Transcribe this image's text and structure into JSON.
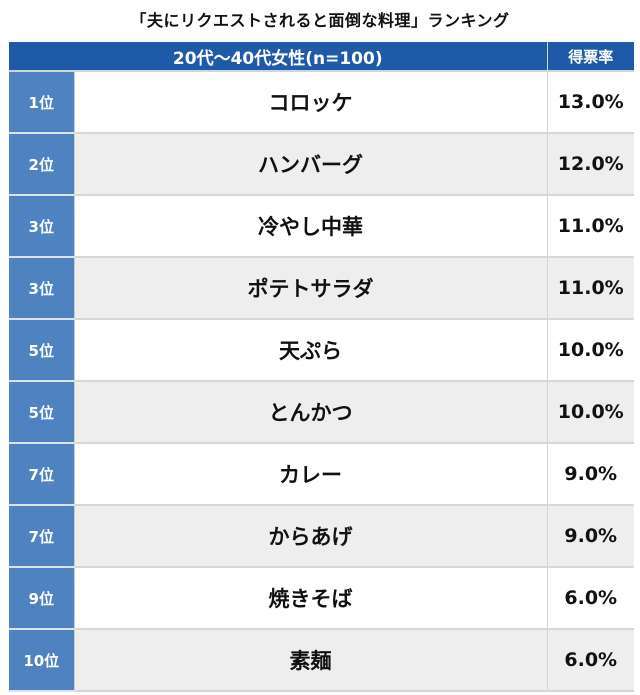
{
  "chart_data": {
    "type": "table",
    "title": "「夫にリクエストされると面倒な料理」ランキング",
    "header": {
      "group_label": "20代〜40代女性(n=100)",
      "share_label": "得票率"
    },
    "rows": [
      {
        "rank": "1位",
        "food": "コロッケ",
        "share": "13.0%",
        "value": 13.0
      },
      {
        "rank": "2位",
        "food": "ハンバーグ",
        "share": "12.0%",
        "value": 12.0
      },
      {
        "rank": "3位",
        "food": "冷やし中華",
        "share": "11.0%",
        "value": 11.0
      },
      {
        "rank": "3位",
        "food": "ポテトサラダ",
        "share": "11.0%",
        "value": 11.0
      },
      {
        "rank": "5位",
        "food": "天ぷら",
        "share": "10.0%",
        "value": 10.0
      },
      {
        "rank": "5位",
        "food": "とんかつ",
        "share": "10.0%",
        "value": 10.0
      },
      {
        "rank": "7位",
        "food": "カレー",
        "share": "9.0%",
        "value": 9.0
      },
      {
        "rank": "7位",
        "food": "からあげ",
        "share": "9.0%",
        "value": 9.0
      },
      {
        "rank": "9位",
        "food": "焼きそば",
        "share": "6.0%",
        "value": 6.0
      },
      {
        "rank": "10位",
        "food": "素麺",
        "share": "6.0%",
        "value": 6.0
      }
    ],
    "colors": {
      "header_bg": "#1f5aa8",
      "rank_bg": "#4f82c0",
      "row_alt_bg": "#eeeeee"
    }
  }
}
